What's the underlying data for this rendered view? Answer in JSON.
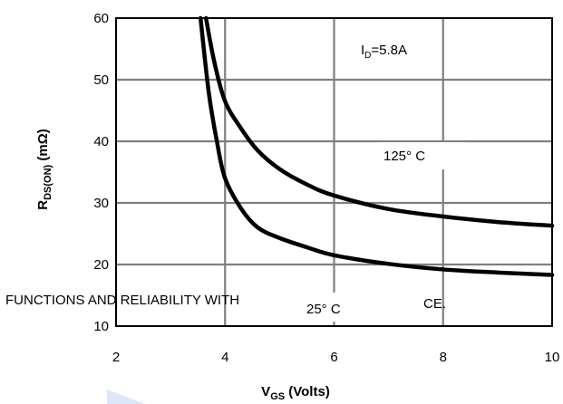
{
  "chart_data": {
    "type": "line",
    "title": "",
    "xlabel_main": "V",
    "xlabel_sub": "GS",
    "xlabel_rest": " (Volts)",
    "ylabel_main": "R",
    "ylabel_sub": "DS(ON)",
    "ylabel_rest": " (mΩ)",
    "xlim": [
      2,
      10
    ],
    "ylim": [
      10,
      60
    ],
    "xticks": [
      2,
      4,
      6,
      8,
      10
    ],
    "yticks": [
      10,
      20,
      30,
      40,
      50,
      60
    ],
    "grid": true,
    "annotations": {
      "id_main": "I",
      "id_sub": "D",
      "id_rest": "=5.8A",
      "t125": "125° C",
      "t25": "25° C"
    },
    "series": [
      {
        "name": "125° C",
        "x": [
          3.65,
          3.8,
          4.0,
          4.3,
          4.6,
          5.0,
          5.5,
          6.0,
          7.0,
          8.0,
          9.0,
          10.0
        ],
        "y": [
          60,
          53,
          46.5,
          42,
          38.5,
          35.5,
          33,
          31.2,
          29,
          27.8,
          26.9,
          26.3
        ]
      },
      {
        "name": "25° C",
        "x": [
          3.55,
          3.7,
          3.85,
          4.0,
          4.3,
          4.6,
          5.0,
          5.5,
          6.0,
          7.0,
          8.0,
          9.0,
          10.0
        ],
        "y": [
          60,
          48,
          40,
          34,
          29,
          26,
          24.3,
          22.8,
          21.5,
          20.1,
          19.2,
          18.7,
          18.3
        ]
      }
    ]
  },
  "watermark": {
    "text_left": "FUNCTIONS AND RELIABILITY WITH",
    "text_right": "CE."
  }
}
